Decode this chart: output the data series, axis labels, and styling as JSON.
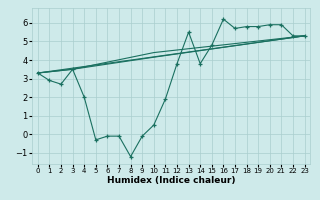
{
  "xlabel": "Humidex (Indice chaleur)",
  "background_color": "#ceeaea",
  "grid_color": "#aacece",
  "line_color": "#1a7060",
  "xlim": [
    -0.5,
    23.5
  ],
  "ylim": [
    -1.6,
    6.8
  ],
  "xticks": [
    0,
    1,
    2,
    3,
    4,
    5,
    6,
    7,
    8,
    9,
    10,
    11,
    12,
    13,
    14,
    15,
    16,
    17,
    18,
    19,
    20,
    21,
    22,
    23
  ],
  "yticks": [
    -1,
    0,
    1,
    2,
    3,
    4,
    5,
    6
  ],
  "main_x": [
    0,
    1,
    2,
    3,
    4,
    5,
    6,
    7,
    8,
    9,
    10,
    11,
    12,
    13,
    14,
    15,
    16,
    17,
    18,
    19,
    20,
    21,
    22,
    23
  ],
  "main_y": [
    3.3,
    2.9,
    2.7,
    3.5,
    2.0,
    -0.3,
    -0.1,
    -0.1,
    -1.2,
    -0.1,
    0.5,
    1.9,
    3.8,
    5.5,
    3.8,
    4.8,
    6.2,
    5.7,
    5.8,
    5.8,
    5.9,
    5.9,
    5.3,
    5.3
  ],
  "trend1_x": [
    0,
    3,
    10,
    23
  ],
  "trend1_y": [
    3.3,
    3.5,
    4.15,
    5.3
  ],
  "trend2_x": [
    0,
    3,
    10,
    23
  ],
  "trend2_y": [
    3.3,
    3.5,
    4.4,
    5.3
  ],
  "trend3_x": [
    0,
    23
  ],
  "trend3_y": [
    3.3,
    5.3
  ]
}
